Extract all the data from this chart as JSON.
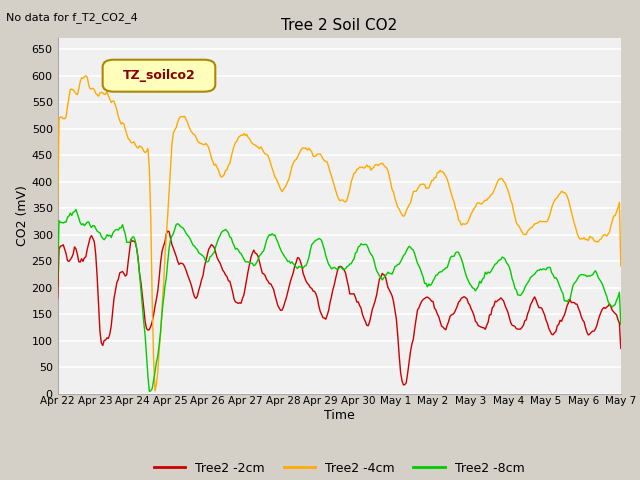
{
  "title": "Tree 2 Soil CO2",
  "subtitle": "No data for f_T2_CO2_4",
  "xlabel": "Time",
  "ylabel": "CO2 (mV)",
  "ylim": [
    0,
    670
  ],
  "yticks": [
    0,
    50,
    100,
    150,
    200,
    250,
    300,
    350,
    400,
    450,
    500,
    550,
    600,
    650
  ],
  "legend_box_text": "TZ_soilco2",
  "fig_facecolor": "#d4d0c8",
  "plot_facecolor": "#f0f0f0",
  "grid_color": "#ffffff",
  "line_colors": {
    "red": "#cc0000",
    "orange": "#ffaa00",
    "green": "#00cc00"
  },
  "x_labels": [
    "Apr 22",
    "Apr 23",
    "Apr 24",
    "Apr 25",
    "Apr 26",
    "Apr 27",
    "Apr 28",
    "Apr 29",
    "Apr 30",
    "May 1",
    "May 2",
    "May 3",
    "May 4",
    "May 5",
    "May 6",
    "May 7"
  ],
  "legend_labels": [
    "Tree2 -2cm",
    "Tree2 -4cm",
    "Tree2 -8cm"
  ],
  "title_fontsize": 11,
  "axis_label_fontsize": 9,
  "tick_fontsize": 8,
  "subtitle_fontsize": 8
}
